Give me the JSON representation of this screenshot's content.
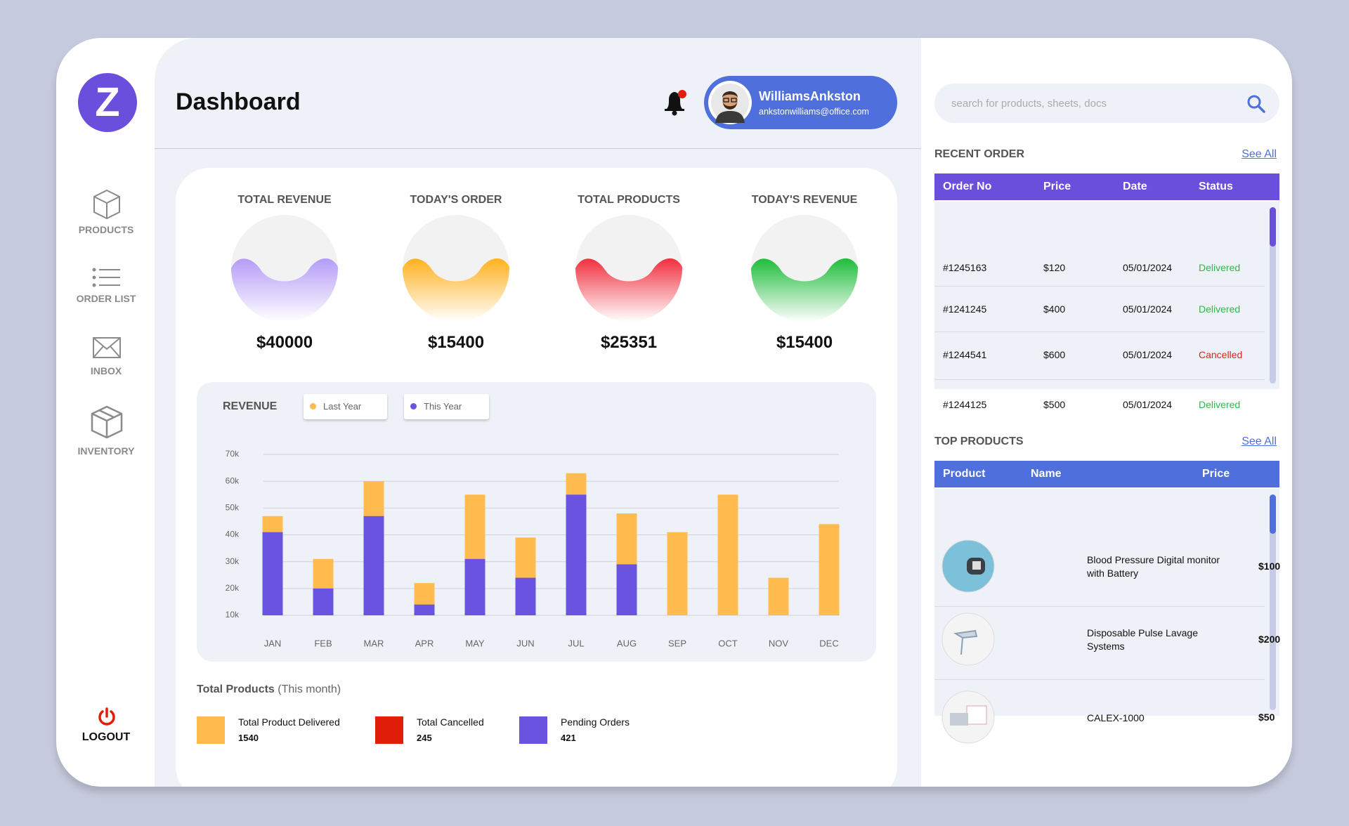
{
  "sidebar": {
    "logo": "Z",
    "nav": [
      "PRODUCTS",
      "ORDER LIST",
      "INBOX",
      "INVENTORY"
    ],
    "logout": "LOGOUT"
  },
  "header": {
    "title": "Dashboard",
    "user": {
      "name": "WilliamsAnkston",
      "email": "ankstonwilliams@office.com"
    }
  },
  "stats": [
    {
      "label": "TOTAL REVENUE",
      "value": "$40000",
      "color": "#b59cf8"
    },
    {
      "label": "TODAY'S ORDER",
      "value": "$15400",
      "color": "#ffb21f"
    },
    {
      "label": "TOTAL PRODUCTS",
      "value": "$25351",
      "color": "#f0303f"
    },
    {
      "label": "TODAY'S REVENUE",
      "value": "$15400",
      "color": "#1ebd3a"
    }
  ],
  "chart_data": {
    "type": "bar",
    "title": "REVENUE",
    "categories": [
      "JAN",
      "FEB",
      "MAR",
      "APR",
      "MAY",
      "JUN",
      "JUL",
      "AUG",
      "SEP",
      "OCT",
      "NOV",
      "DEC"
    ],
    "series": [
      {
        "name": "Last Year",
        "color": "#ffbb4d",
        "values": [
          47000,
          31000,
          60000,
          22000,
          55000,
          39000,
          63000,
          48000,
          41000,
          55000,
          24000,
          44000
        ]
      },
      {
        "name": "This Year",
        "color": "#6a53e0",
        "values": [
          41000,
          20000,
          47000,
          14000,
          31000,
          24000,
          55000,
          29000,
          null,
          null,
          null,
          null
        ]
      }
    ],
    "ylim": [
      10000,
      70000
    ],
    "yticks": [
      {
        "value": 10000,
        "label": "10k"
      },
      {
        "value": 20000,
        "label": "20k"
      },
      {
        "value": 30000,
        "label": "30k"
      },
      {
        "value": 40000,
        "label": "40k"
      },
      {
        "value": 50000,
        "label": "50k"
      },
      {
        "value": 60000,
        "label": "60k"
      },
      {
        "value": 70000,
        "label": "70k"
      }
    ],
    "grid": true
  },
  "product_summary": {
    "title": "Total Products",
    "subtitle": "(This month)",
    "items": [
      {
        "label": "Total Product Delivered",
        "value": 1540,
        "color": "#ffbb4d"
      },
      {
        "label": "Total Cancelled",
        "value": 245,
        "color": "#e01e0a"
      },
      {
        "label": "Pending Orders",
        "value": 421,
        "color": "#6a53e0"
      }
    ]
  },
  "search": {
    "placeholder": "search for products, sheets, docs"
  },
  "recent_orders": {
    "title": "RECENT ORDER",
    "link": "See All",
    "columns": [
      "Order No",
      "Price",
      "Date",
      "Status"
    ],
    "rows": [
      [
        "#1245163",
        "$120",
        "05/01/2024",
        "Delivered"
      ],
      [
        "#1241245",
        "$400",
        "05/01/2024",
        "Delivered"
      ],
      [
        "#1244541",
        "$600",
        "05/01/2024",
        "Cancelled"
      ],
      [
        "#1244125",
        "$500",
        "05/01/2024",
        "Delivered"
      ]
    ],
    "status_colors": [
      "#2eb84b",
      "#2eb84b",
      "#e2231a",
      "#2eb84b"
    ]
  },
  "top_products": {
    "title": "TOP PRODUCTS",
    "link": "See All",
    "columns": [
      "Product",
      "Name",
      "Price"
    ],
    "rows": [
      [
        "Blood Pressure Digital monitor with Battery",
        "$100"
      ],
      [
        "Disposable Pulse Lavage Systems",
        "$200"
      ],
      [
        "CALEX-1000",
        "$50"
      ]
    ]
  }
}
